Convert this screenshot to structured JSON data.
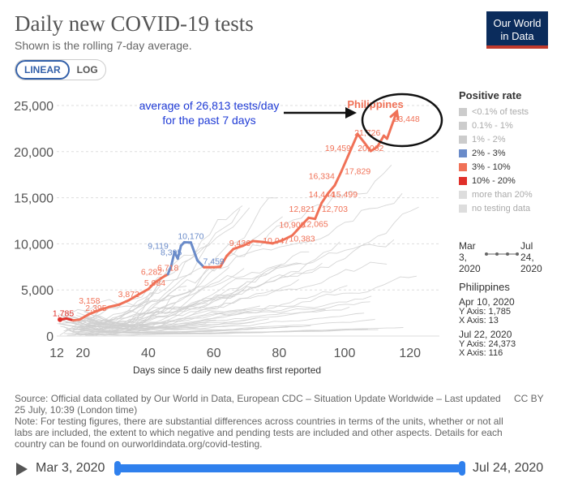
{
  "header": {
    "title": "Daily new COVID-19 tests",
    "subtitle": "Shown is the rolling 7-day average.",
    "logo_line1": "Our World",
    "logo_line2": "in Data",
    "scale_linear": "LINEAR",
    "scale_log": "LOG"
  },
  "legend": {
    "title": "Positive rate",
    "items": [
      {
        "label": "<0.1% of tests",
        "color": "#cccccc",
        "muted": true
      },
      {
        "label": "0.1% - 1%",
        "color": "#cccccc",
        "muted": true
      },
      {
        "label": "1% - 2%",
        "color": "#cccccc",
        "muted": true
      },
      {
        "label": "2% - 3%",
        "color": "#6a8bc9",
        "muted": false
      },
      {
        "label": "3% - 10%",
        "color": "#f07157",
        "muted": false
      },
      {
        "label": "10% - 20%",
        "color": "#e0302a",
        "muted": false
      },
      {
        "label": "more than 20%",
        "color": "#dddddd",
        "muted": true
      },
      {
        "label": "no testing data",
        "color": "#dddddd",
        "muted": true
      }
    ]
  },
  "daterange": {
    "start_line1": "Mar",
    "start_line2": "3,",
    "start_line3": "2020",
    "end_line1": "Jul",
    "end_line2": "24,",
    "end_line3": "2020"
  },
  "entity": {
    "name": "Philippines",
    "first": {
      "date": "Apr 10, 2020",
      "y": "Y Axis: 1,785",
      "x": "X Axis: 13"
    },
    "last": {
      "date": "Jul 22, 2020",
      "y": "Y Axis: 24,373",
      "x": "X Axis: 116"
    }
  },
  "footer": {
    "source": "Source: Official data collated by Our World in Data, European CDC – Situation Update Worldwide – Last updated 25 July, 10:39 (London time)",
    "note": "Note: For testing figures, there are substantial differences across countries in terms of the units, whether or not all labs are included, the extent to which negative and pending tests are included and other aspects. Details for each country can be found on ourworldindata.org/covid-testing.",
    "license": "CC BY"
  },
  "timeline": {
    "start": "Mar 3, 2020",
    "end": "Jul 24, 2020"
  },
  "chart_data": {
    "type": "line",
    "title": "Daily new COVID-19 tests",
    "xlabel": "Days since 5 daily new deaths first reported",
    "ylabel": "",
    "xlim": [
      12,
      129
    ],
    "ylim": [
      0,
      25000
    ],
    "xticks": [
      12,
      20,
      40,
      60,
      80,
      100,
      120
    ],
    "yticks": [
      0,
      5000,
      10000,
      15000,
      20000,
      25000
    ],
    "ytick_labels": [
      "0",
      "5,000",
      "10,000",
      "15,000",
      "20,000",
      "25,000"
    ],
    "xtick_labels": [
      "12",
      "20",
      "40",
      "60",
      "80",
      "100",
      "120"
    ],
    "series": [
      {
        "name": "Philippines",
        "label": "Philippines",
        "points": [
          {
            "x": 13,
            "y": 1785,
            "c": "#e0302a"
          },
          {
            "x": 15,
            "y": 1900,
            "c": "#e0302a"
          },
          {
            "x": 17,
            "y": 1700,
            "c": "#e0302a"
          },
          {
            "x": 19,
            "y": 1785,
            "c": "#f07157"
          },
          {
            "x": 22,
            "y": 2395,
            "c": "#f07157"
          },
          {
            "x": 25,
            "y": 2800,
            "c": "#f07157"
          },
          {
            "x": 28,
            "y": 3158,
            "c": "#f07157"
          },
          {
            "x": 31,
            "y": 3400,
            "c": "#f07157"
          },
          {
            "x": 34,
            "y": 3872,
            "c": "#f07157"
          },
          {
            "x": 37,
            "y": 4500,
            "c": "#f07157"
          },
          {
            "x": 40,
            "y": 5084,
            "c": "#f07157"
          },
          {
            "x": 42,
            "y": 5800,
            "c": "#f07157"
          },
          {
            "x": 44,
            "y": 6282,
            "c": "#f07157"
          },
          {
            "x": 46,
            "y": 6718,
            "c": "#f07157"
          },
          {
            "x": 47,
            "y": 7600,
            "c": "#6a8bc9"
          },
          {
            "x": 48,
            "y": 9119,
            "c": "#6a8bc9"
          },
          {
            "x": 49,
            "y": 8395,
            "c": "#6a8bc9"
          },
          {
            "x": 50,
            "y": 9800,
            "c": "#6a8bc9"
          },
          {
            "x": 51,
            "y": 10170,
            "c": "#6a8bc9"
          },
          {
            "x": 53,
            "y": 10150,
            "c": "#6a8bc9"
          },
          {
            "x": 55,
            "y": 8200,
            "c": "#6a8bc9"
          },
          {
            "x": 57,
            "y": 7459,
            "c": "#6a8bc9"
          },
          {
            "x": 60,
            "y": 7459,
            "c": "#f07157"
          },
          {
            "x": 62,
            "y": 7500,
            "c": "#f07157"
          },
          {
            "x": 64,
            "y": 8700,
            "c": "#f07157"
          },
          {
            "x": 66,
            "y": 9436,
            "c": "#f07157"
          },
          {
            "x": 69,
            "y": 9800,
            "c": "#f07157"
          },
          {
            "x": 72,
            "y": 10300,
            "c": "#f07157"
          },
          {
            "x": 75,
            "y": 10200,
            "c": "#f07157"
          },
          {
            "x": 78,
            "y": 10047,
            "c": "#f07157"
          },
          {
            "x": 81,
            "y": 10383,
            "c": "#f07157"
          },
          {
            "x": 84,
            "y": 10908,
            "c": "#f07157"
          },
          {
            "x": 87,
            "y": 12065,
            "c": "#f07157"
          },
          {
            "x": 89,
            "y": 12821,
            "c": "#f07157"
          },
          {
            "x": 91,
            "y": 12703,
            "c": "#f07157"
          },
          {
            "x": 93,
            "y": 14444,
            "c": "#f07157"
          },
          {
            "x": 95,
            "y": 15499,
            "c": "#f07157"
          },
          {
            "x": 97,
            "y": 16334,
            "c": "#f07157"
          },
          {
            "x": 99,
            "y": 17829,
            "c": "#f07157"
          },
          {
            "x": 101,
            "y": 19459,
            "c": "#f07157"
          },
          {
            "x": 103,
            "y": 21100,
            "c": "#f07157"
          },
          {
            "x": 104,
            "y": 21900,
            "c": "#f07157"
          },
          {
            "x": 106,
            "y": 21000,
            "c": "#f07157"
          },
          {
            "x": 108,
            "y": 20062,
            "c": "#f07157"
          },
          {
            "x": 110,
            "y": 20500,
            "c": "#f07157"
          },
          {
            "x": 112,
            "y": 21726,
            "c": "#f07157"
          },
          {
            "x": 113,
            "y": 21400,
            "c": "#f07157"
          },
          {
            "x": 116,
            "y": 24373,
            "c": "#f07157"
          }
        ]
      }
    ],
    "data_labels": [
      {
        "x": 14,
        "y": 1785,
        "text": "1,785",
        "c": "#e0302a"
      },
      {
        "x": 24,
        "y": 2395,
        "text": "2,395",
        "c": "#f07157"
      },
      {
        "x": 22,
        "y": 3158,
        "text": "3,158",
        "c": "#f07157"
      },
      {
        "x": 34,
        "y": 3872,
        "text": "3,872",
        "c": "#f07157"
      },
      {
        "x": 42,
        "y": 5084,
        "text": "5,084",
        "c": "#f07157"
      },
      {
        "x": 41,
        "y": 6282,
        "text": "6,282",
        "c": "#f07157"
      },
      {
        "x": 46,
        "y": 6718,
        "text": "6,718",
        "c": "#f07157"
      },
      {
        "x": 43,
        "y": 9119,
        "text": "9,119",
        "c": "#6a8bc9"
      },
      {
        "x": 47,
        "y": 8395,
        "text": "8,395",
        "c": "#6a8bc9"
      },
      {
        "x": 53,
        "y": 10170,
        "text": "10,170",
        "c": "#6a8bc9"
      },
      {
        "x": 60,
        "y": 7459,
        "text": "7,459",
        "c": "#6a8bc9"
      },
      {
        "x": 68,
        "y": 9436,
        "text": "9,436",
        "c": "#f07157"
      },
      {
        "x": 79,
        "y": 9700,
        "text": "10,047",
        "c": "#f07157"
      },
      {
        "x": 87,
        "y": 9900,
        "text": "10,383",
        "c": "#f07157"
      },
      {
        "x": 84,
        "y": 11400,
        "text": "10,908",
        "c": "#f07157"
      },
      {
        "x": 91,
        "y": 11500,
        "text": "12,065",
        "c": "#f07157"
      },
      {
        "x": 87,
        "y": 13100,
        "text": "12,821",
        "c": "#f07157"
      },
      {
        "x": 97,
        "y": 13100,
        "text": "12,703",
        "c": "#f07157"
      },
      {
        "x": 93,
        "y": 14700,
        "text": "14,444",
        "c": "#f07157"
      },
      {
        "x": 100,
        "y": 14700,
        "text": "15,499",
        "c": "#f07157"
      },
      {
        "x": 93,
        "y": 16700,
        "text": "16,334",
        "c": "#f07157"
      },
      {
        "x": 104,
        "y": 17200,
        "text": "17,829",
        "c": "#f07157"
      },
      {
        "x": 98,
        "y": 19700,
        "text": "19,459",
        "c": "#f07157"
      },
      {
        "x": 107,
        "y": 21400,
        "text": "21,726",
        "c": "#f07157"
      },
      {
        "x": 108,
        "y": 19700,
        "text": "20,062",
        "c": "#f07157"
      },
      {
        "x": 119,
        "y": 22900,
        "text": "23,448",
        "c": "#f07157"
      }
    ],
    "annotations": {
      "callout_line1": "average of 26,813 tests/day",
      "callout_line2": "for the past 7 days",
      "country_label": "Philippines"
    }
  }
}
